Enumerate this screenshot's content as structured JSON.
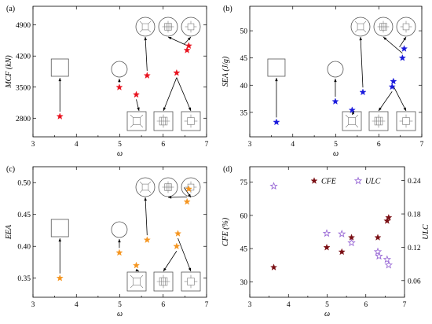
{
  "chart_data": [
    {
      "id": "a",
      "type": "scatter",
      "panel_label": "(a)",
      "xlabel": "ω",
      "ylabel": "MCF (kN)",
      "xlim": [
        3,
        7
      ],
      "ylim": [
        2380,
        5320
      ],
      "xticks": [
        3,
        4,
        5,
        6,
        7
      ],
      "yticks": [
        2800,
        3500,
        4200,
        4900
      ],
      "color": "#e8121e",
      "points": [
        {
          "x": 3.62,
          "y": 2840
        },
        {
          "x": 4.99,
          "y": 3495
        },
        {
          "x": 5.38,
          "y": 3330
        },
        {
          "x": 5.63,
          "y": 3760
        },
        {
          "x": 6.31,
          "y": 3820
        },
        {
          "x": 6.55,
          "y": 4330
        },
        {
          "x": 6.59,
          "y": 4430
        }
      ]
    },
    {
      "id": "b",
      "type": "scatter",
      "panel_label": "(b)",
      "xlabel": "ω",
      "ylabel": "SEA (J/g)",
      "xlim": [
        3,
        7
      ],
      "ylim": [
        30.5,
        54.5
      ],
      "xticks": [
        3,
        4,
        5,
        6,
        7
      ],
      "yticks": [
        35,
        40,
        45,
        50
      ],
      "color": "#1a1adc",
      "points": [
        {
          "x": 3.62,
          "y": 33.2
        },
        {
          "x": 4.99,
          "y": 37.0
        },
        {
          "x": 5.38,
          "y": 35.4
        },
        {
          "x": 5.63,
          "y": 38.7
        },
        {
          "x": 6.31,
          "y": 39.7
        },
        {
          "x": 6.34,
          "y": 40.7
        },
        {
          "x": 6.55,
          "y": 45.0
        },
        {
          "x": 6.59,
          "y": 46.7
        }
      ]
    },
    {
      "id": "c",
      "type": "scatter",
      "panel_label": "(c)",
      "xlabel": "ω",
      "ylabel": "EEA",
      "xlim": [
        3,
        7
      ],
      "ylim": [
        0.32,
        0.525
      ],
      "xticks": [
        3,
        4,
        5,
        6,
        7
      ],
      "yticks": [
        0.35,
        0.4,
        0.45,
        0.5
      ],
      "yticklabels": [
        "0.35",
        "0.40",
        "0.45",
        "0.50"
      ],
      "color": "#f5951f",
      "points": [
        {
          "x": 3.62,
          "y": 0.35
        },
        {
          "x": 4.99,
          "y": 0.39
        },
        {
          "x": 5.38,
          "y": 0.37
        },
        {
          "x": 5.63,
          "y": 0.41
        },
        {
          "x": 6.31,
          "y": 0.4
        },
        {
          "x": 6.34,
          "y": 0.42
        },
        {
          "x": 6.55,
          "y": 0.47
        },
        {
          "x": 6.59,
          "y": 0.49
        }
      ]
    },
    {
      "id": "d",
      "type": "scatter",
      "panel_label": "(d)",
      "xlabel": "ω",
      "ylabel": "CFE (%)",
      "ylabel_right": "ULC",
      "xlim": [
        3,
        7
      ],
      "ylim": [
        23,
        82
      ],
      "ylim_right": [
        0.03,
        0.265
      ],
      "xticks": [
        3,
        4,
        5,
        6,
        7
      ],
      "yticks": [
        30,
        45,
        60,
        75
      ],
      "yticks_right": [
        0.06,
        0.12,
        0.18,
        0.24
      ],
      "yticklabels_right": [
        "0.06",
        "0.12",
        "0.18",
        "0.24"
      ],
      "legend": [
        "CFE",
        "ULC"
      ],
      "series": [
        {
          "name": "CFE",
          "color": "#7a0f14",
          "marker": "filled-star",
          "axis": "left",
          "points": [
            {
              "x": 3.62,
              "y": 36.5
            },
            {
              "x": 4.99,
              "y": 45.5
            },
            {
              "x": 5.38,
              "y": 43.5
            },
            {
              "x": 5.63,
              "y": 50.0
            },
            {
              "x": 6.31,
              "y": 50.0
            },
            {
              "x": 6.55,
              "y": 57.5
            },
            {
              "x": 6.59,
              "y": 59.0
            }
          ]
        },
        {
          "name": "ULC",
          "color": "#9a6ad6",
          "marker": "hollow-star",
          "axis": "right",
          "points": [
            {
              "x": 3.62,
              "y": 0.23
            },
            {
              "x": 4.99,
              "y": 0.145
            },
            {
              "x": 5.38,
              "y": 0.144
            },
            {
              "x": 5.63,
              "y": 0.128
            },
            {
              "x": 6.31,
              "y": 0.112
            },
            {
              "x": 6.34,
              "y": 0.104
            },
            {
              "x": 6.55,
              "y": 0.098
            },
            {
              "x": 6.59,
              "y": 0.088
            }
          ]
        }
      ]
    }
  ]
}
